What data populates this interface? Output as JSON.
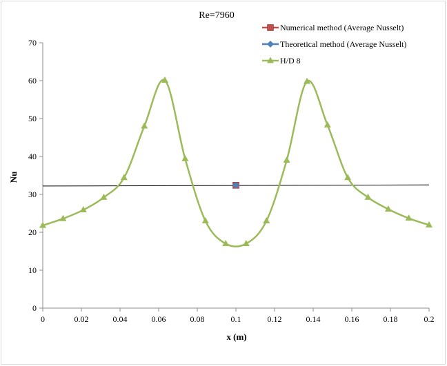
{
  "chart_data": {
    "type": "line",
    "title": "Re=7960",
    "xlabel": "x (m)",
    "ylabel": "Nu",
    "xlim": [
      0,
      0.2
    ],
    "ylim": [
      0,
      70
    ],
    "x_ticks": [
      "0",
      "0.02",
      "0.04",
      "0.06",
      "0.08",
      "0.1",
      "0.12",
      "0.14",
      "0.16",
      "0.18",
      "0.2"
    ],
    "y_ticks": [
      "0",
      "10",
      "20",
      "30",
      "40",
      "50",
      "60",
      "70"
    ],
    "grid": false,
    "legend_position": "top-right",
    "series": [
      {
        "name": "Numerical method (Average Nusselt)",
        "marker": "square",
        "color": "#c0504d",
        "x": [
          0.1
        ],
        "y": [
          32.4
        ]
      },
      {
        "name": "Theoretical method (Average Nusselt)",
        "marker": "diamond",
        "color": "#4f81bd",
        "x": [
          0.1
        ],
        "y": [
          32.4
        ]
      },
      {
        "name": "H/D 8",
        "marker": "triangle",
        "color": "#9bbb59",
        "x": [
          0,
          0.0105,
          0.021,
          0.0316,
          0.0421,
          0.0526,
          0.0632,
          0.0737,
          0.0842,
          0.0947,
          0.1053,
          0.1158,
          0.1263,
          0.1368,
          0.1474,
          0.1579,
          0.1684,
          0.1789,
          0.1895,
          0.2
        ],
        "y": [
          21.8,
          23.6,
          25.9,
          29.2,
          34.4,
          48.0,
          60.1,
          39.4,
          23.0,
          17.0,
          17.0,
          23.0,
          39.0,
          59.8,
          48.3,
          34.4,
          29.2,
          26.1,
          23.7,
          21.9
        ]
      }
    ],
    "reference_line": {
      "y": [
        32.2,
        32.5
      ],
      "color": "#000000"
    }
  }
}
